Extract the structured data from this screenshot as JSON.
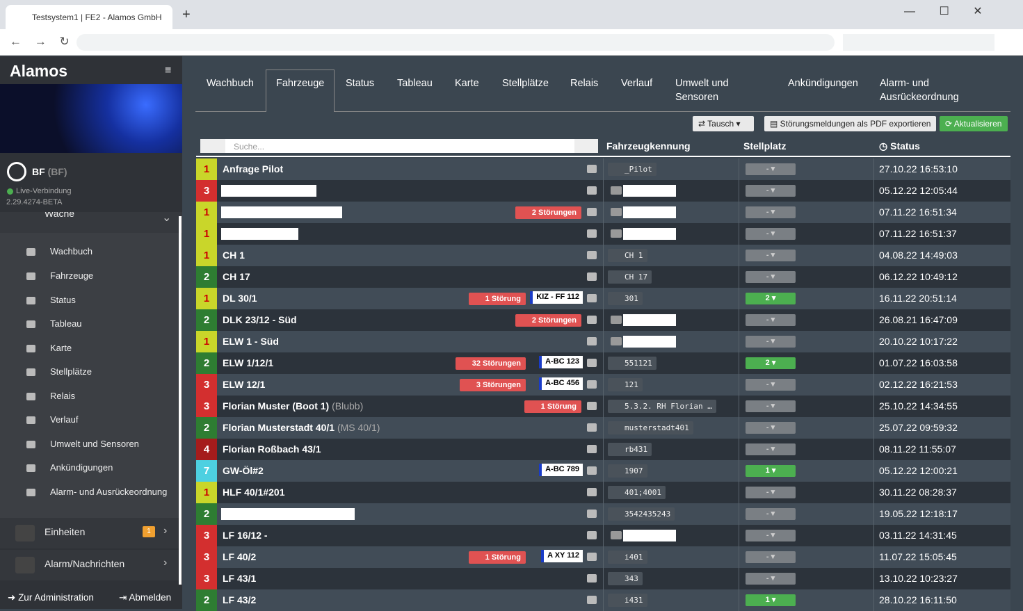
{
  "browser": {
    "tab_title": "Testsystem1 | FE2 - Alamos GmbH"
  },
  "sidebar": {
    "logo": "Alamos",
    "org": "BF",
    "org_short": "(BF)",
    "connection": "Live-Verbindung",
    "version": "2.29.4274-BETA",
    "section": "Wache",
    "items": [
      "Wachbuch",
      "Fahrzeuge",
      "Status",
      "Tableau",
      "Karte",
      "Stellplätze",
      "Relais",
      "Verlauf",
      "Umwelt und Sensoren",
      "Ankündigungen",
      "Alarm- und Ausrückeordnung"
    ],
    "units": "Einheiten",
    "units_badge": 1,
    "alarm": "Alarm/Nachrichten",
    "admin": "Zur Administration",
    "logout": "Abmelden"
  },
  "tabs": {
    "items": [
      "Wachbuch",
      "Fahrzeuge",
      "Status",
      "Tableau",
      "Karte",
      "Stellplätze",
      "Relais",
      "Verlauf",
      "Umwelt und Sensoren",
      "Ankündigungen",
      "Alarm- und Ausrückeordnung"
    ],
    "active": 1
  },
  "toolbar": {
    "swap": "Tausch",
    "export": "Störungsmeldungen als PDF exportieren",
    "refresh": "Aktualisieren"
  },
  "table": {
    "search_placeholder": "Suche...",
    "headers": [
      "Fahrzeugkennung",
      "Stellplatz",
      "Status"
    ],
    "status_colors": {
      "1": "#c9d62a",
      "2": "#2e7d32",
      "3": "#d32f2f",
      "4": "#a51c1c",
      "7": "#4dd0e1"
    },
    "rows": [
      {
        "status": 1,
        "name": "Anfrage Pilot",
        "id": "_Pilot",
        "spot": "-",
        "time": "27.10.22 16:53:10"
      },
      {
        "status": 3,
        "spot": "-",
        "time": "05.12.22 12:05:44"
      },
      {
        "status": 1,
        "fault": "2 Störungen",
        "spot": "-",
        "time": "07.11.22 16:51:34"
      },
      {
        "status": 1,
        "spot": "-",
        "time": "07.11.22 16:51:37"
      },
      {
        "status": 1,
        "name": "CH 1",
        "id": "CH 1",
        "spot": "-",
        "time": "04.08.22 14:49:03"
      },
      {
        "status": 2,
        "name": "CH 17",
        "id": "CH 17",
        "spot": "-",
        "time": "06.12.22 10:49:12"
      },
      {
        "status": 1,
        "name": "DL 30/1",
        "fault": "1 Störung",
        "plate": "KIZ - FF 112",
        "id": "301",
        "spot": "2",
        "time": "16.11.22 20:51:14"
      },
      {
        "status": 2,
        "name": "DLK 23/12 - Süd",
        "fault": "2 Störungen",
        "spot": "-",
        "time": "26.08.21 16:47:09"
      },
      {
        "status": 1,
        "name": "ELW 1 - Süd",
        "spot": "-",
        "time": "20.10.22 10:17:22"
      },
      {
        "status": 2,
        "name": "ELW 1/12/1",
        "fault": "32 Störungen",
        "plate": "A-BC 123",
        "id": "551121",
        "spot": "2",
        "time": "01.07.22 16:03:58"
      },
      {
        "status": 3,
        "name": "ELW 12/1",
        "fault": "3 Störungen",
        "plate": "A-BC 456",
        "id": "121",
        "spot": "-",
        "time": "02.12.22 16:21:53"
      },
      {
        "status": 3,
        "name": "Florian Muster (Boot 1)",
        "extra": "(Blubb)",
        "fault": "1 Störung",
        "id": "5.3.2. RH Florian …",
        "spot": "-",
        "time": "25.10.22 14:34:55"
      },
      {
        "status": 2,
        "name": "Florian Musterstadt 40/1",
        "extra": "(MS 40/1)",
        "id": "musterstadt401",
        "spot": "-",
        "time": "25.07.22 09:59:32"
      },
      {
        "status": 4,
        "name": "Florian Roßbach 43/1",
        "id": "rb431",
        "spot": "-",
        "time": "08.11.22 11:55:07"
      },
      {
        "status": 7,
        "name": "GW-Öl#2",
        "plate": "A-BC 789",
        "id": "1907",
        "spot": "1",
        "time": "05.12.22 12:00:21"
      },
      {
        "status": 1,
        "name": "HLF 40/1#201",
        "id": "401;4001",
        "spot": "-",
        "time": "30.11.22 08:28:37"
      },
      {
        "status": 2,
        "id": "3542435243",
        "spot": "-",
        "time": "19.05.22 12:18:17"
      },
      {
        "status": 3,
        "name": "LF 16/12 -",
        "spot": "-",
        "time": "03.11.22 14:31:45"
      },
      {
        "status": 3,
        "name": "LF 40/2",
        "fault": "1 Störung",
        "plate": "A XY 112",
        "id": "i401",
        "spot": "-",
        "time": "11.07.22 15:05:45"
      },
      {
        "status": 3,
        "name": "LF 43/1",
        "id": "343",
        "spot": "-",
        "time": "13.10.22 10:23:27"
      },
      {
        "status": 2,
        "name": "LF 43/2",
        "id": "i431",
        "spot": "1",
        "time": "28.10.22 16:11:50"
      }
    ]
  }
}
